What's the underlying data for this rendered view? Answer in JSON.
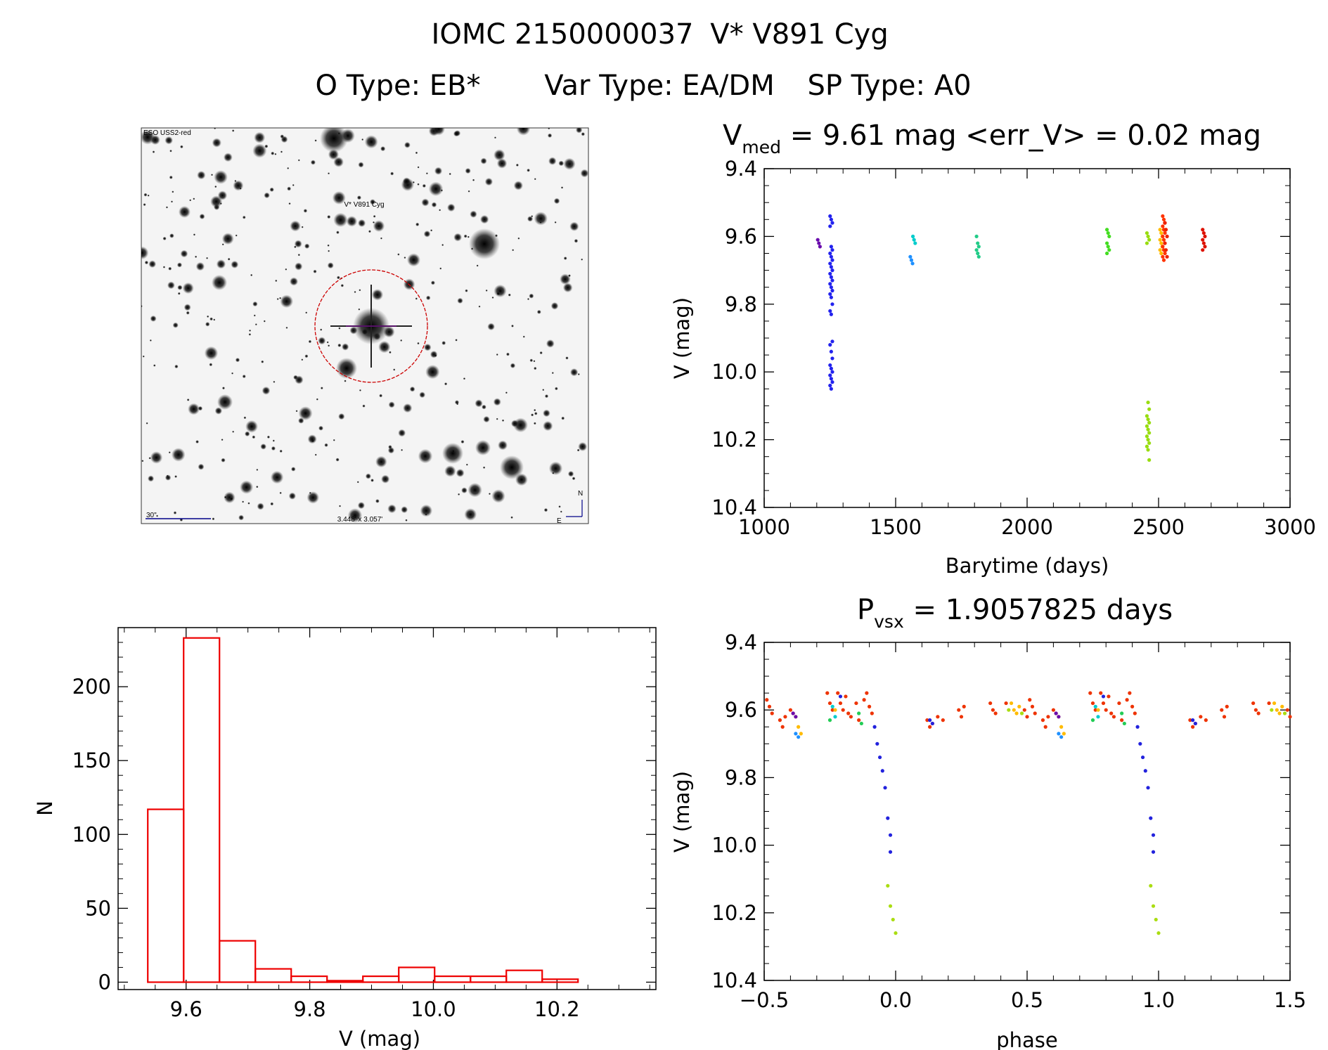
{
  "header": {
    "line1_left": "IOMC 2150000037",
    "line1_right": "V* V891 Cyg",
    "line2_a": "O Type: EB*",
    "line2_b": "Var Type: EA/DM",
    "line2_c": "SP Type: A0"
  },
  "finder": {
    "survey_label": "ESO USS2-red",
    "object_label": "V* V891 Cyg",
    "scale_label": "30\"",
    "fov_label": "3.448' x 3.057'",
    "north_label": "N",
    "east_label": "E",
    "target_circle_color": "#cc0000",
    "label_color": "#000088"
  },
  "lc_time": {
    "title_prefix": "V",
    "title_sub": "med",
    "title_rest": " = 9.61 mag <err_V> = 0.02 mag",
    "xlabel": "Barytime (days)",
    "ylabel": "V (mag)"
  },
  "histogram": {
    "xlabel": "V (mag)",
    "ylabel": "N"
  },
  "lc_phase": {
    "title_prefix": "P",
    "title_sub": "vsx",
    "title_rest": " = 1.9057825 days",
    "xlabel": "phase",
    "ylabel": "V (mag)"
  },
  "chart_data": [
    {
      "type": "scatter",
      "panel": "time",
      "xlim": [
        1000,
        3000
      ],
      "ylim": [
        10.4,
        9.4
      ],
      "y_inverted": true,
      "x_ticks": [
        1000,
        1500,
        2000,
        2500,
        3000
      ],
      "y_ticks": [
        9.4,
        9.6,
        9.8,
        10.0,
        10.2,
        10.4
      ],
      "groups": [
        {
          "color": "#6a0dad",
          "x": 1208,
          "y": [
            9.61,
            9.62,
            9.63
          ]
        },
        {
          "color": "#2222ee",
          "x": 1255,
          "y": [
            9.54,
            9.55,
            9.56,
            9.57,
            9.63,
            9.64,
            9.65,
            9.66,
            9.67,
            9.68,
            9.69,
            9.7,
            9.71,
            9.72,
            9.73,
            9.74,
            9.75,
            9.76,
            9.77,
            9.78,
            9.8,
            9.82,
            9.83,
            9.91,
            9.92,
            9.94,
            9.96,
            9.98,
            9.99,
            10.0,
            10.01,
            10.02,
            10.03,
            10.04,
            10.05
          ]
        },
        {
          "color": "#1e90ff",
          "x": 1560,
          "y": [
            9.66,
            9.67,
            9.68
          ]
        },
        {
          "color": "#00cccc",
          "x": 1570,
          "y": [
            9.6,
            9.61,
            9.62
          ]
        },
        {
          "color": "#22cc88",
          "x": 1812,
          "y": [
            9.6,
            9.62,
            9.63,
            9.64,
            9.65,
            9.66
          ]
        },
        {
          "color": "#44dd22",
          "x": 2308,
          "y": [
            9.58,
            9.59,
            9.6,
            9.62,
            9.63,
            9.64,
            9.65
          ]
        },
        {
          "color": "#99dd11",
          "x": 2460,
          "y": [
            9.59,
            9.6,
            9.61,
            9.62,
            10.09,
            10.11,
            10.13,
            10.14,
            10.15,
            10.16,
            10.17,
            10.18,
            10.19,
            10.2,
            10.21,
            10.22,
            10.23,
            10.26
          ]
        },
        {
          "color": "#ffbb00",
          "x": 2510,
          "y": [
            9.58,
            9.59,
            9.6,
            9.61,
            9.62,
            9.63,
            9.64,
            9.65
          ]
        },
        {
          "color": "#ff3300",
          "x": 2520,
          "y": [
            9.54,
            9.55,
            9.56,
            9.57,
            9.58,
            9.59,
            9.6,
            9.61,
            9.62,
            9.63,
            9.64,
            9.65,
            9.66,
            9.67
          ]
        },
        {
          "color": "#ee2200",
          "x": 2528,
          "y": [
            9.56,
            9.58,
            9.6,
            9.62,
            9.64,
            9.66
          ]
        },
        {
          "color": "#dd1100",
          "x": 2672,
          "y": [
            9.58,
            9.59,
            9.6,
            9.61,
            9.62,
            9.63,
            9.64
          ]
        }
      ]
    },
    {
      "type": "bar",
      "panel": "histogram",
      "xlim": [
        9.49,
        10.36
      ],
      "ylim": [
        0,
        235
      ],
      "x_ticks": [
        9.6,
        9.8,
        10.0,
        10.2
      ],
      "y_ticks": [
        0,
        50,
        100,
        150,
        200
      ],
      "bin_width": 0.058,
      "bin_starts": [
        9.538,
        9.596,
        9.654,
        9.712,
        9.77,
        9.828,
        9.886,
        9.944,
        10.002,
        10.06,
        10.118,
        10.176,
        10.234
      ],
      "values": [
        117,
        233,
        28,
        9,
        4,
        1,
        4,
        10,
        4,
        4,
        8,
        2,
        0
      ],
      "color": "#ee0000"
    },
    {
      "type": "scatter",
      "panel": "phase",
      "xlim": [
        -0.5,
        1.5
      ],
      "ylim": [
        10.4,
        9.4
      ],
      "y_inverted": true,
      "x_ticks": [
        -0.5,
        0.0,
        0.5,
        1.0,
        1.5
      ],
      "y_ticks": [
        9.4,
        9.6,
        9.8,
        10.0,
        10.2,
        10.4
      ],
      "period_days": 1.9057825,
      "series_base": [
        {
          "color": "#ee3300",
          "x": [
            -0.49,
            -0.48,
            -0.47,
            -0.44,
            -0.43,
            -0.42,
            -0.4,
            -0.39,
            -0.26,
            -0.25,
            -0.24,
            -0.22,
            -0.21,
            -0.2,
            -0.19,
            -0.18,
            -0.17,
            -0.15,
            -0.14,
            -0.12,
            -0.11,
            -0.1,
            -0.09,
            0.12,
            0.13,
            0.14,
            0.16,
            0.18,
            0.24,
            0.25,
            0.26,
            0.36,
            0.37,
            0.38,
            0.42,
            0.49,
            0.5
          ],
          "y": [
            9.57,
            9.59,
            9.61,
            9.63,
            9.65,
            9.62,
            9.6,
            9.61,
            9.55,
            9.58,
            9.6,
            9.55,
            9.58,
            9.6,
            9.56,
            9.61,
            9.62,
            9.58,
            9.63,
            9.57,
            9.55,
            9.59,
            9.61,
            9.63,
            9.65,
            9.64,
            9.62,
            9.63,
            9.6,
            9.62,
            9.59,
            9.58,
            9.6,
            9.61,
            9.58,
            9.6,
            9.62
          ]
        },
        {
          "color": "#ffbb00",
          "x": [
            -0.38,
            -0.37,
            -0.36,
            -0.23,
            0.44,
            0.45,
            0.46,
            0.47
          ],
          "y": [
            9.62,
            9.65,
            9.67,
            9.6,
            9.58,
            9.6,
            9.61,
            9.59
          ]
        },
        {
          "color": "#aadd11",
          "x": [
            0.43,
            0.48,
            -0.0,
            -0.01,
            -0.02,
            -0.03
          ],
          "y": [
            9.6,
            9.61,
            10.26,
            10.22,
            10.18,
            10.12
          ]
        },
        {
          "color": "#22cc55",
          "x": [
            -0.25,
            -0.14,
            -0.13
          ],
          "y": [
            9.63,
            9.61,
            9.64
          ]
        },
        {
          "color": "#00cccc",
          "x": [
            -0.24,
            -0.23
          ],
          "y": [
            9.59,
            9.62
          ]
        },
        {
          "color": "#1e90ff",
          "x": [
            -0.38,
            -0.37
          ],
          "y": [
            9.67,
            9.68
          ]
        },
        {
          "color": "#6a0dad",
          "x": [
            -0.39,
            -0.38
          ],
          "y": [
            9.61,
            9.62
          ]
        },
        {
          "color": "#2222dd",
          "x": [
            -0.08,
            -0.07,
            -0.06,
            -0.05,
            -0.04,
            -0.03,
            -0.02,
            -0.02,
            -0.21,
            0.13,
            0.14
          ],
          "y": [
            9.65,
            9.7,
            9.74,
            9.78,
            9.83,
            9.92,
            9.97,
            10.02,
            9.56,
            9.63,
            9.64
          ]
        }
      ]
    }
  ]
}
